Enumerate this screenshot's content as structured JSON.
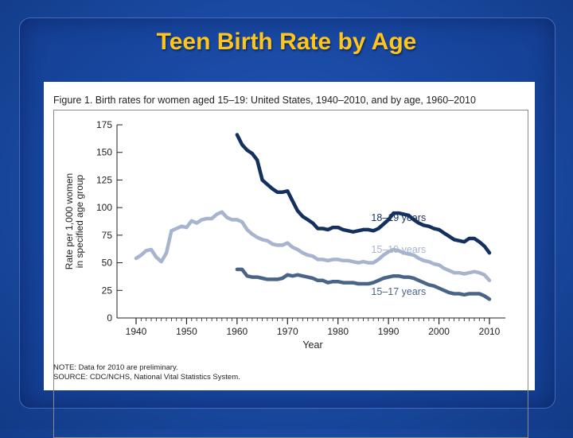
{
  "slide": {
    "title": "Teen Birth Rate by Age"
  },
  "figure": {
    "caption": "Figure 1. Birth rates for women aged 15–19: United States, 1940–2010, and by age, 1960–2010",
    "note": "NOTE: Data for 2010 are preliminary.",
    "source": "SOURCE: CDC/NCHS, National Vital Statistics System."
  },
  "chart_data": {
    "type": "line",
    "title": "Figure 1. Birth rates for women aged 15–19: United States, 1940–2010, and by age, 1960–2010",
    "xlabel": "Year",
    "ylabel_lines": [
      "Rate per 1,000 women",
      "in specified age group"
    ],
    "xlim": [
      1940,
      2010
    ],
    "ylim": [
      0,
      175
    ],
    "x_ticks": [
      1940,
      1950,
      1960,
      1970,
      1980,
      1990,
      2000,
      2010
    ],
    "y_ticks": [
      0,
      25,
      50,
      75,
      100,
      125,
      150,
      175
    ],
    "grid": false,
    "series": [
      {
        "name": "18–19 years",
        "color": "#14305f",
        "x": [
          1960,
          1961,
          1962,
          1963,
          1964,
          1965,
          1966,
          1967,
          1968,
          1969,
          1970,
          1971,
          1972,
          1973,
          1974,
          1975,
          1976,
          1977,
          1978,
          1979,
          1980,
          1981,
          1982,
          1983,
          1984,
          1985,
          1986,
          1987,
          1988,
          1989,
          1990,
          1991,
          1992,
          1993,
          1994,
          1995,
          1996,
          1997,
          1998,
          1999,
          2000,
          2001,
          2002,
          2003,
          2004,
          2005,
          2006,
          2007,
          2008,
          2009,
          2010
        ],
        "y": [
          166,
          157,
          152,
          149,
          143,
          125,
          121,
          117,
          114,
          114,
          115,
          106,
          97,
          92,
          89,
          86,
          81,
          81,
          80,
          82,
          82,
          80,
          79,
          78,
          79,
          80,
          80,
          79,
          81,
          85,
          89,
          95,
          95,
          94,
          93,
          89,
          86,
          84,
          83,
          81,
          80,
          77,
          74,
          71,
          70,
          69,
          72,
          72,
          69,
          65,
          59
        ],
        "label_x": 1992,
        "label_y": 88
      },
      {
        "name": "15–19 years",
        "color": "#a7b4cd",
        "x": [
          1940,
          1941,
          1942,
          1943,
          1944,
          1945,
          1946,
          1947,
          1948,
          1949,
          1950,
          1951,
          1952,
          1953,
          1954,
          1955,
          1956,
          1957,
          1958,
          1959,
          1960,
          1961,
          1962,
          1963,
          1964,
          1965,
          1966,
          1967,
          1968,
          1969,
          1970,
          1971,
          1972,
          1973,
          1974,
          1975,
          1976,
          1977,
          1978,
          1979,
          1980,
          1981,
          1982,
          1983,
          1984,
          1985,
          1986,
          1987,
          1988,
          1989,
          1990,
          1991,
          1992,
          1993,
          1994,
          1995,
          1996,
          1997,
          1998,
          1999,
          2000,
          2001,
          2002,
          2003,
          2004,
          2005,
          2006,
          2007,
          2008,
          2009,
          2010
        ],
        "y": [
          54,
          57,
          61,
          62,
          55,
          51,
          59,
          79,
          81,
          83,
          82,
          88,
          86,
          89,
          90,
          90,
          94,
          96,
          91,
          89,
          89,
          87,
          80,
          76,
          73,
          71,
          70,
          67,
          66,
          66,
          68,
          64,
          62,
          59,
          57,
          56,
          53,
          53,
          52,
          53,
          53,
          52,
          52,
          51,
          50,
          51,
          50,
          50,
          53,
          57,
          60,
          62,
          61,
          59,
          58,
          57,
          54,
          52,
          51,
          49,
          48,
          45,
          43,
          41,
          41,
          40,
          41,
          42,
          41,
          39,
          34
        ],
        "label_x": 1992,
        "label_y": 59
      },
      {
        "name": "15–17 years",
        "color": "#4a6488",
        "x": [
          1960,
          1961,
          1962,
          1963,
          1964,
          1965,
          1966,
          1967,
          1968,
          1969,
          1970,
          1971,
          1972,
          1973,
          1974,
          1975,
          1976,
          1977,
          1978,
          1979,
          1980,
          1981,
          1982,
          1983,
          1984,
          1985,
          1986,
          1987,
          1988,
          1989,
          1990,
          1991,
          1992,
          1993,
          1994,
          1995,
          1996,
          1997,
          1998,
          1999,
          2000,
          2001,
          2002,
          2003,
          2004,
          2005,
          2006,
          2007,
          2008,
          2009,
          2010
        ],
        "y": [
          44,
          44,
          38,
          37,
          37,
          36,
          35,
          35,
          35,
          36,
          39,
          38,
          39,
          38,
          37,
          36,
          34,
          34,
          32,
          33,
          33,
          32,
          32,
          32,
          31,
          31,
          31,
          32,
          34,
          36,
          37,
          38,
          38,
          37,
          37,
          36,
          34,
          32,
          30,
          29,
          27,
          25,
          23,
          22,
          22,
          21,
          22,
          22,
          22,
          20,
          17
        ],
        "label_x": 1992,
        "label_y": 21
      }
    ]
  }
}
